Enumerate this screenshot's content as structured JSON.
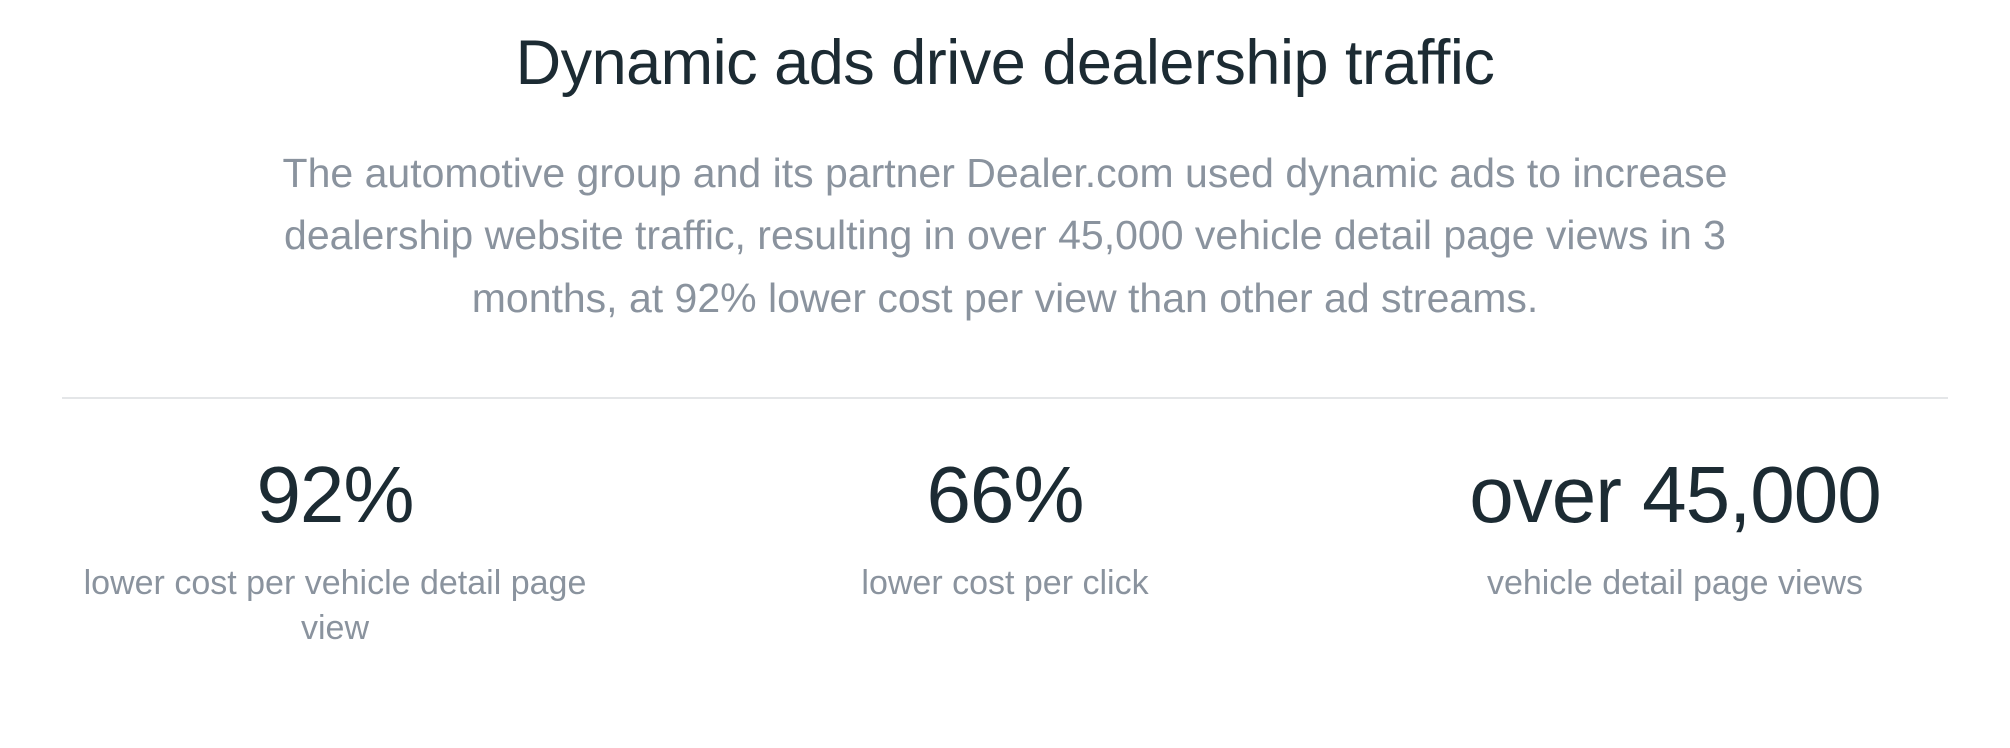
{
  "hero": {
    "title": "Dynamic ads drive dealership traffic",
    "description": "The automotive group and its partner Dealer.com used dynamic ads to increase dealership website traffic, resulting in over 45,000 vehicle detail page views in 3 months, at 92% lower cost per view than other ad streams."
  },
  "stats": [
    {
      "value": "92%",
      "label": "lower cost per vehicle detail page view"
    },
    {
      "value": "66%",
      "label": "lower cost per click"
    },
    {
      "value": "over 45,000",
      "label": "vehicle detail page views"
    }
  ],
  "colors": {
    "heading": "#1c2b33",
    "body_text": "#8a939e",
    "divider": "#e4e6e8",
    "background": "#ffffff"
  }
}
